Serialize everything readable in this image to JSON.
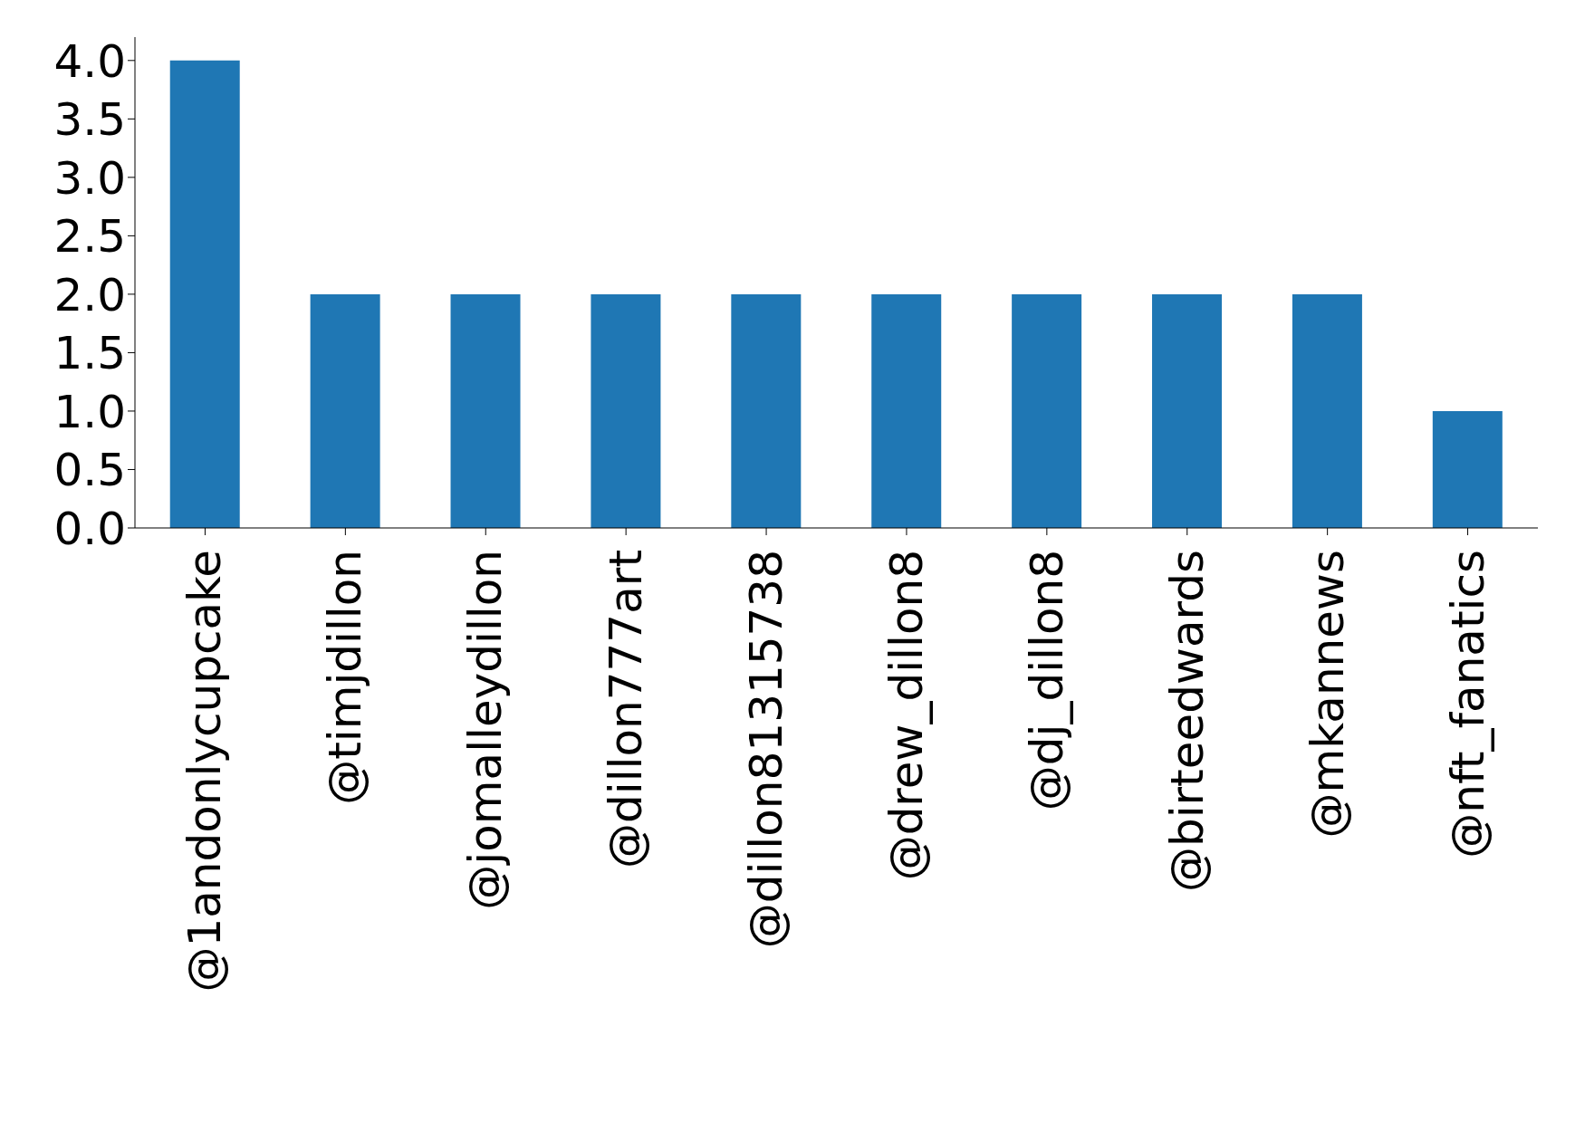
{
  "chart_data": {
    "type": "bar",
    "categories": [
      "@1andonlycupcake",
      "@timjdillon",
      "@jomalleydillon",
      "@dillon777art",
      "@dillon81315738",
      "@drew_dillon8",
      "@dj_dillon8",
      "@birteedwards",
      "@mkannews",
      "@nft_fanatics"
    ],
    "values": [
      4,
      2,
      2,
      2,
      2,
      2,
      2,
      2,
      2,
      1
    ],
    "color": "#1f77b4",
    "ylim": [
      0,
      4.2
    ],
    "yticks": [
      {
        "value": 0,
        "label": "0.0"
      },
      {
        "value": 0.5,
        "label": "0.5"
      },
      {
        "value": 1,
        "label": "1.0"
      },
      {
        "value": 1.5,
        "label": "1.5"
      },
      {
        "value": 2,
        "label": "2.0"
      },
      {
        "value": 2.5,
        "label": "2.5"
      },
      {
        "value": 3,
        "label": "3.0"
      },
      {
        "value": 3.5,
        "label": "3.5"
      },
      {
        "value": 4,
        "label": "4.0"
      }
    ],
    "grid": false
  }
}
